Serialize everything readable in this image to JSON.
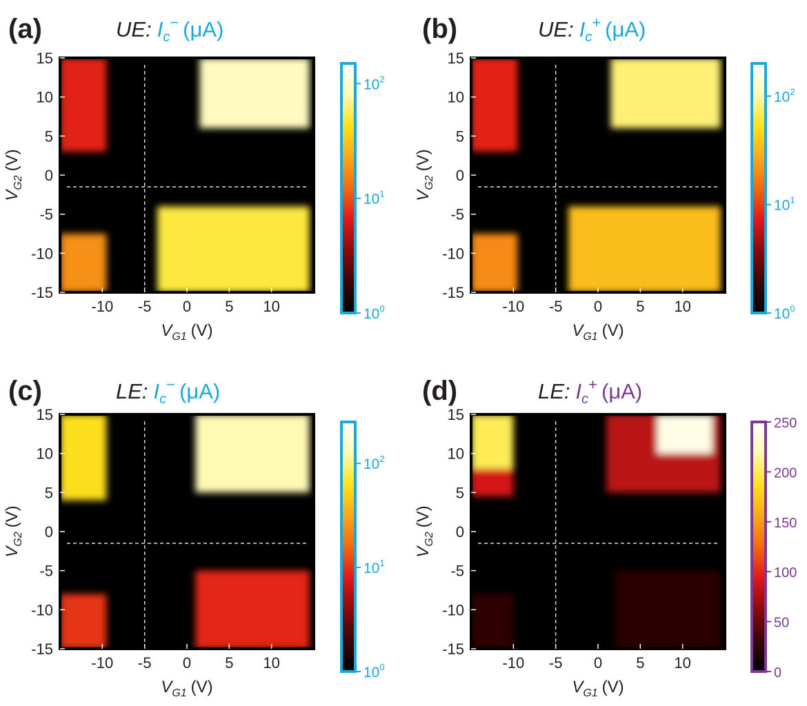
{
  "figure": {
    "common": {
      "xlabel_main": "V",
      "xlabel_sub": "G1",
      "xlabel_unit": "(V)",
      "ylabel_main": "V",
      "ylabel_sub": "G2",
      "ylabel_unit": "(V)",
      "x_ticks": [
        "-10",
        "-5",
        "0",
        "5",
        "10"
      ],
      "y_ticks": [
        "15",
        "10",
        "5",
        "0",
        "-5",
        "-10",
        "-15"
      ],
      "log_colorbar_ticks": [
        "0",
        "1",
        "2"
      ],
      "log_colorbar_base": "10",
      "dashed_guides": {
        "x": -5,
        "y": -1.5
      }
    },
    "colors": {
      "blue_accent": "#1aa7dc",
      "purple_accent": "#7a3a91",
      "colormap": [
        "#000000",
        "#3a0606",
        "#8a0a0a",
        "#e0181a",
        "#f26a10",
        "#f9a81a",
        "#fde21a",
        "#fff9b0",
        "#ffffff"
      ]
    }
  },
  "chart_data": [
    {
      "type": "heatmap",
      "panel": "(a)",
      "title_prefix": "UE:",
      "title_var": "I",
      "title_sub": "c",
      "title_sup": "−",
      "title_unit": "(μA)",
      "title_color": "blue",
      "xlim": [
        -15,
        15
      ],
      "ylim": [
        -15,
        15
      ],
      "colorbar": {
        "scale": "log",
        "range": [
          1,
          150
        ]
      },
      "regions": [
        {
          "x": [
            -15,
            -9.5
          ],
          "y": [
            3,
            15
          ],
          "value": 7
        },
        {
          "x": [
            1.5,
            14.5
          ],
          "y": [
            6,
            15
          ],
          "value": 90
        },
        {
          "x": [
            -15,
            -9.5
          ],
          "y": [
            -15,
            -7.5
          ],
          "value": 18
        },
        {
          "x": [
            -3.5,
            14.5
          ],
          "y": [
            -15,
            -4
          ],
          "value": 50
        }
      ]
    },
    {
      "type": "heatmap",
      "panel": "(b)",
      "title_prefix": "UE:",
      "title_var": "I",
      "title_sub": "c",
      "title_sup": "+",
      "title_unit": "(μA)",
      "title_color": "blue",
      "xlim": [
        -15,
        15
      ],
      "ylim": [
        -15,
        15
      ],
      "colorbar": {
        "scale": "log",
        "range": [
          1,
          200
        ]
      },
      "regions": [
        {
          "x": [
            -15,
            -9.5
          ],
          "y": [
            3,
            15
          ],
          "value": 8
        },
        {
          "x": [
            1.5,
            14.5
          ],
          "y": [
            6,
            15
          ],
          "value": 80
        },
        {
          "x": [
            -15,
            -9.5
          ],
          "y": [
            -15,
            -7.5
          ],
          "value": 20
        },
        {
          "x": [
            -3.5,
            14.5
          ],
          "y": [
            -15,
            -4
          ],
          "value": 35
        }
      ]
    },
    {
      "type": "heatmap",
      "panel": "(c)",
      "title_prefix": "LE:",
      "title_var": "I",
      "title_sub": "c",
      "title_sup": "−",
      "title_unit": "(μA)",
      "title_color": "blue",
      "xlim": [
        -15,
        15
      ],
      "ylim": [
        -15,
        15
      ],
      "colorbar": {
        "scale": "log",
        "range": [
          1,
          250
        ]
      },
      "regions": [
        {
          "x": [
            -15,
            -9.5
          ],
          "y": [
            4,
            15
          ],
          "value": 60
        },
        {
          "x": [
            1,
            14.5
          ],
          "y": [
            5,
            15
          ],
          "value": 130
        },
        {
          "x": [
            -15,
            -9.5
          ],
          "y": [
            -15,
            -8
          ],
          "value": 10
        },
        {
          "x": [
            1,
            14.5
          ],
          "y": [
            -15,
            -5
          ],
          "value": 9
        }
      ]
    },
    {
      "type": "heatmap",
      "panel": "(d)",
      "title_prefix": "LE:",
      "title_var": "I",
      "title_sub": "c",
      "title_sup": "+",
      "title_unit": "(μA)",
      "title_color": "purple",
      "xlim": [
        -15,
        15
      ],
      "ylim": [
        -15,
        15
      ],
      "colorbar": {
        "scale": "linear",
        "range": [
          0,
          250
        ],
        "ticks": [
          "250",
          "200",
          "150",
          "100",
          "50",
          "0"
        ]
      },
      "regions": [
        {
          "x": [
            -15,
            -10
          ],
          "y": [
            8,
            15
          ],
          "value": 200
        },
        {
          "x": [
            -15,
            -10
          ],
          "y": [
            4.5,
            8
          ],
          "value": 90
        },
        {
          "x": [
            1,
            14.5
          ],
          "y": [
            5,
            15
          ],
          "value": 80
        },
        {
          "x": [
            7,
            13.5
          ],
          "y": [
            10,
            15
          ],
          "value": 240
        },
        {
          "x": [
            -15,
            -10
          ],
          "y": [
            -15,
            -8
          ],
          "value": 25
        },
        {
          "x": [
            2,
            14.5
          ],
          "y": [
            -15,
            -5
          ],
          "value": 22
        }
      ]
    }
  ]
}
